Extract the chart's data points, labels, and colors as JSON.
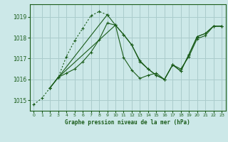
{
  "background_color": "#cce8e8",
  "grid_color": "#aacccc",
  "line_color": "#1a5c1a",
  "title": "Graphe pression niveau de la mer (hPa)",
  "ylim": [
    1014.5,
    1019.6
  ],
  "xlim": [
    -0.5,
    23.5
  ],
  "yticks": [
    1015,
    1016,
    1017,
    1018,
    1019
  ],
  "xticks": [
    0,
    1,
    2,
    3,
    4,
    5,
    6,
    7,
    8,
    9,
    10,
    11,
    12,
    13,
    14,
    15,
    16,
    17,
    18,
    19,
    20,
    21,
    22,
    23
  ],
  "series": [
    {
      "x": [
        0,
        1,
        2,
        3,
        4,
        5,
        6,
        7,
        8,
        9
      ],
      "y": [
        1014.8,
        1015.1,
        1015.6,
        1016.1,
        1017.1,
        1017.85,
        1018.45,
        1019.05,
        1019.25,
        1019.1
      ],
      "style": "dotted"
    },
    {
      "x": [
        2,
        3,
        4,
        5,
        6,
        7,
        8,
        9,
        10,
        11,
        12,
        13,
        14,
        15,
        16,
        17,
        18,
        19,
        20,
        21,
        22,
        23
      ],
      "y": [
        1015.6,
        1016.1,
        1016.3,
        1016.5,
        1016.85,
        1017.3,
        1017.9,
        1018.7,
        1018.6,
        1018.15,
        1017.65,
        1016.85,
        1016.5,
        1016.2,
        1016.0,
        1016.7,
        1016.4,
        1017.2,
        1018.05,
        1018.2,
        1018.55,
        1018.55
      ],
      "style": "solid"
    },
    {
      "x": [
        2,
        3,
        9,
        10,
        11,
        12,
        13,
        14,
        15,
        16,
        17,
        18,
        19,
        20,
        21,
        22,
        23
      ],
      "y": [
        1015.6,
        1016.1,
        1019.1,
        1018.6,
        1018.15,
        1017.65,
        1016.9,
        1016.5,
        1016.2,
        1016.0,
        1016.7,
        1016.4,
        1017.2,
        1018.05,
        1018.2,
        1018.55,
        1018.55
      ],
      "style": "solid"
    },
    {
      "x": [
        2,
        3,
        10,
        11,
        12,
        13,
        14,
        15,
        16,
        17,
        18,
        19,
        20,
        21,
        22,
        23
      ],
      "y": [
        1015.6,
        1016.1,
        1018.6,
        1017.05,
        1016.45,
        1016.05,
        1016.2,
        1016.3,
        1016.0,
        1016.7,
        1016.5,
        1017.1,
        1017.95,
        1018.1,
        1018.55,
        1018.55
      ],
      "style": "solid"
    }
  ]
}
